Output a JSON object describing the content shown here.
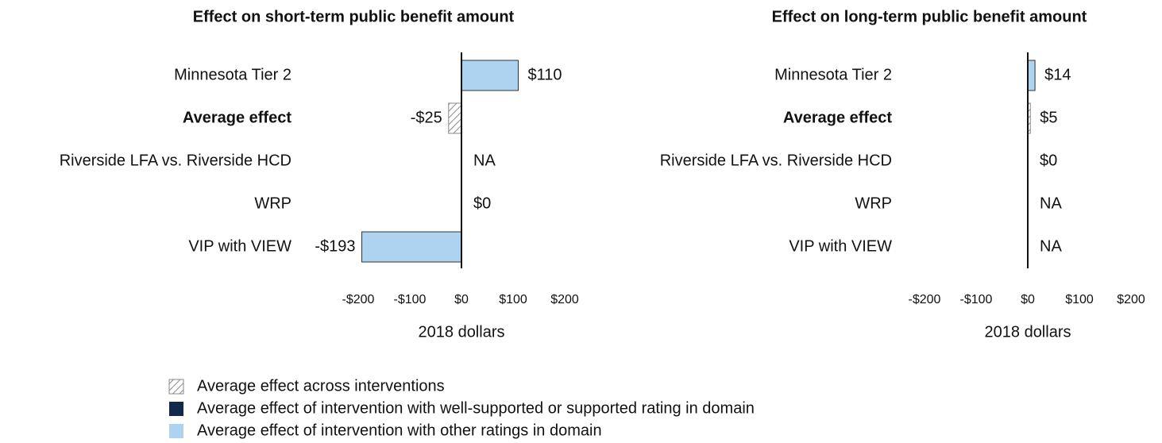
{
  "chart_data": [
    {
      "type": "hbar",
      "title": "Effect on short-term public benefit amount",
      "categories": [
        "Minnesota Tier 2",
        "Average effect",
        "Riverside LFA vs. Riverside HCD",
        "WRP",
        "VIP with VIEW"
      ],
      "values": [
        110,
        -25,
        null,
        0,
        -193
      ],
      "value_labels": [
        "$110",
        "-$25",
        "NA",
        "$0",
        "-$193"
      ],
      "colors": [
        "#aed3f0",
        "hatch",
        "#aed3f0",
        "#aed3f0",
        "#aed3f0"
      ],
      "xlim": [
        -200,
        200
      ],
      "xticks": [
        {
          "value": -200,
          "label": "-$200"
        },
        {
          "value": -100,
          "label": "-$100"
        },
        {
          "value": 0,
          "label": "$0"
        },
        {
          "value": 100,
          "label": "$100"
        },
        {
          "value": 200,
          "label": "$200"
        }
      ],
      "xlabel": "2018 dollars"
    },
    {
      "type": "hbar",
      "title": "Effect on long-term public benefit amount",
      "categories": [
        "Minnesota Tier 2",
        "Average effect",
        "Riverside LFA vs. Riverside HCD",
        "WRP",
        "VIP with VIEW"
      ],
      "values": [
        14,
        5,
        0,
        null,
        null
      ],
      "value_labels": [
        "$14",
        "$5",
        "$0",
        "NA",
        "NA"
      ],
      "colors": [
        "#aed3f0",
        "hatch",
        "#aed3f0",
        "#aed3f0",
        "#aed3f0"
      ],
      "xlim": [
        -200,
        200
      ],
      "xticks": [
        {
          "value": -200,
          "label": "-$200"
        },
        {
          "value": -100,
          "label": "-$100"
        },
        {
          "value": 0,
          "label": "$0"
        },
        {
          "value": 100,
          "label": "$100"
        },
        {
          "value": 200,
          "label": "$200"
        }
      ],
      "xlabel": "2018 dollars"
    }
  ],
  "legend": [
    {
      "label": "Average effect across interventions",
      "color": "hatch"
    },
    {
      "label": "Average effect of intervention with well-supported or supported rating in domain",
      "color": "#13294b"
    },
    {
      "label": "Average effect of intervention with other ratings in domain",
      "color": "#aed3f0"
    }
  ]
}
